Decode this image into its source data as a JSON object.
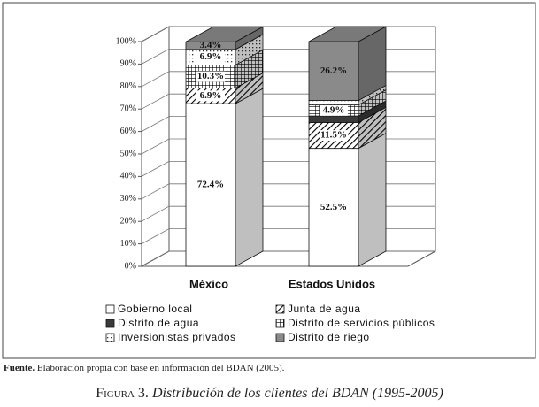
{
  "chart_data": {
    "type": "stacked-bar-3d",
    "categories": [
      "México",
      "Estados Unidos"
    ],
    "series": [
      {
        "name": "Gobierno local",
        "color": "#ffffff",
        "pattern": "solid",
        "values": [
          72.4,
          52.5
        ],
        "value_labels": [
          "72.4%",
          "52.5%"
        ]
      },
      {
        "name": "Junta de agua",
        "color": "#ffffff",
        "pattern": "diagonal",
        "values": [
          6.9,
          11.5
        ],
        "value_labels": [
          "6.9%",
          "11.5%"
        ]
      },
      {
        "name": "Distrito de agua",
        "color": "#3a3a3a",
        "pattern": "solid",
        "values": [
          0,
          2.9
        ],
        "value_labels": [
          null,
          null
        ]
      },
      {
        "name": "Distrito de servicios públicos",
        "color": "#ffffff",
        "pattern": "grid",
        "values": [
          10.3,
          4.9
        ],
        "value_labels": [
          "10.3%",
          "4.9%"
        ]
      },
      {
        "name": "Inversionistas privados",
        "color": "#ffffff",
        "pattern": "dots",
        "values": [
          6.9,
          2.0
        ],
        "value_labels": [
          "6.9%",
          null
        ]
      },
      {
        "name": "Distrito de riego",
        "color": "#8a8a8a",
        "pattern": "solid",
        "values": [
          3.4,
          26.2
        ],
        "value_labels": [
          "3.4%",
          "26.2%"
        ]
      }
    ],
    "ylim": [
      0,
      100
    ],
    "yticks": [
      {
        "value": 0,
        "label": "0%"
      },
      {
        "value": 10,
        "label": "10%"
      },
      {
        "value": 20,
        "label": "20%"
      },
      {
        "value": 30,
        "label": "30%"
      },
      {
        "value": 40,
        "label": "40%"
      },
      {
        "value": 50,
        "label": "50%"
      },
      {
        "value": 60,
        "label": "60%"
      },
      {
        "value": 70,
        "label": "70%"
      },
      {
        "value": 80,
        "label": "80%"
      },
      {
        "value": 90,
        "label": "90%"
      },
      {
        "value": 100,
        "label": "100%"
      }
    ],
    "grid": true
  },
  "source_label": "Fuente.",
  "source": "Elaboración propia con base en información del BDAN (2005).",
  "caption_label": "Figura 3.",
  "caption": "Distribución de los clientes del BDAN (1995-2005)"
}
